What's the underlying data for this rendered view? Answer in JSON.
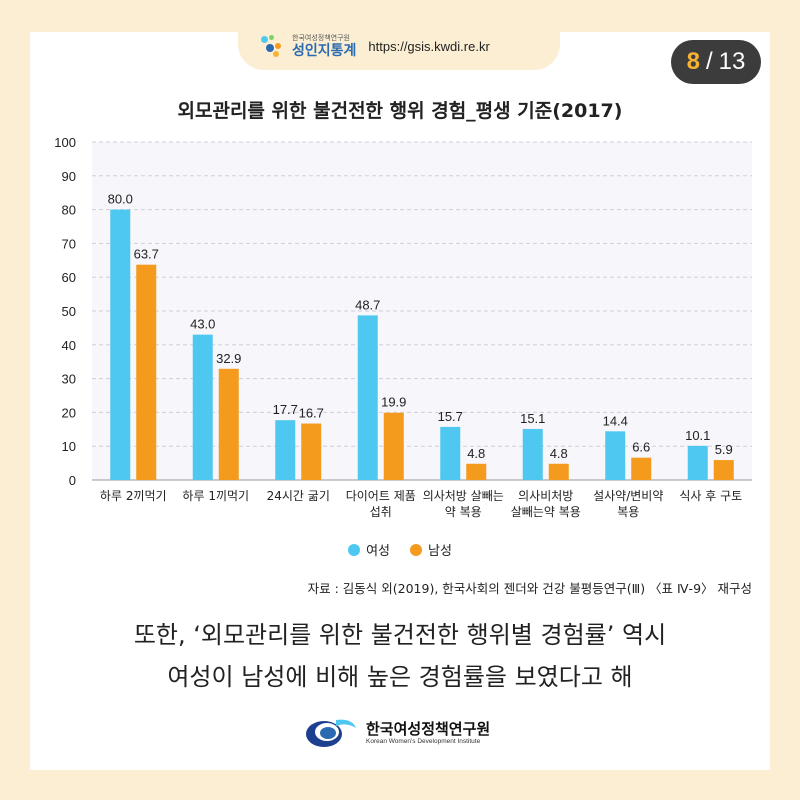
{
  "header": {
    "brand_small": "한국여성정책연구원",
    "brand_big": "성인지통계",
    "url": "https://gsis.kwdi.re.kr"
  },
  "page": {
    "current": "8",
    "separator": "/",
    "total": "13"
  },
  "colors": {
    "female": "#4ec8f0",
    "male": "#f49a1c",
    "page_accent": "#f6b233"
  },
  "chart_data": {
    "type": "bar",
    "title": "외모관리를 위한 불건전한 행위 경험_평생 기준(2017)",
    "xlabel": "",
    "ylabel": "",
    "ylim": [
      0,
      100
    ],
    "yticks": [
      0,
      10,
      20,
      30,
      40,
      50,
      60,
      70,
      80,
      90,
      100
    ],
    "grid": true,
    "categories": [
      [
        "하루 2끼먹기"
      ],
      [
        "하루 1끼먹기"
      ],
      [
        "24시간 굶기"
      ],
      [
        "다이어트 제품",
        "섭취"
      ],
      [
        "의사처방 살빼는",
        "약 복용"
      ],
      [
        "의사비처방",
        "살빼는약 복용"
      ],
      [
        "설사약/변비약",
        "복용"
      ],
      [
        "식사 후 구토"
      ]
    ],
    "series": [
      {
        "name": "여성",
        "color": "#4ec8f0",
        "values": [
          80.0,
          43.0,
          17.7,
          48.7,
          15.7,
          15.1,
          14.4,
          10.1
        ],
        "labels": [
          "80.0",
          "43.0",
          "17.7",
          "48.7",
          "15.7",
          "15.1",
          "14.4",
          "10.1"
        ]
      },
      {
        "name": "남성",
        "color": "#f49a1c",
        "values": [
          63.7,
          32.9,
          16.7,
          19.9,
          4.8,
          4.8,
          6.6,
          5.9
        ],
        "labels": [
          "63.7",
          "32.9",
          "16.7",
          "19.9",
          "4.8",
          "4.8",
          "6.6",
          "5.9"
        ]
      }
    ],
    "legend_position": "bottom"
  },
  "legend": {
    "female": "여성",
    "male": "남성"
  },
  "source": "자료 : 김동식 외(2019), 한국사회의 젠더와 건강 불평등연구(Ⅲ) 〈표 Ⅳ-9〉 재구성",
  "caption": {
    "line1": "또한, ‘외모관리를 위한 불건전한 행위별 경험률’ 역시",
    "line2": "여성이 남성에 비해 높은 경험률을 보였다고 해"
  },
  "footer": {
    "org_kr": "한국여성정책연구원",
    "org_en": "Korean Women's Development Institute"
  }
}
